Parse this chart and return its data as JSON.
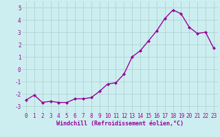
{
  "x": [
    0,
    1,
    2,
    3,
    4,
    5,
    6,
    7,
    8,
    9,
    10,
    11,
    12,
    13,
    14,
    15,
    16,
    17,
    18,
    19,
    20,
    21,
    22,
    23
  ],
  "y": [
    -2.5,
    -2.1,
    -2.7,
    -2.6,
    -2.7,
    -2.7,
    -2.4,
    -2.4,
    -2.3,
    -1.8,
    -1.2,
    -1.1,
    -0.4,
    1.0,
    1.5,
    2.3,
    3.1,
    4.1,
    4.8,
    4.5,
    3.4,
    2.9,
    3.0,
    1.7
  ],
  "line_color": "#990099",
  "marker": "D",
  "marker_size": 2.2,
  "linewidth": 1.0,
  "xlabel": "Windchill (Refroidissement éolien,°C)",
  "xlabel_fontsize": 6.0,
  "xlim": [
    -0.5,
    23.5
  ],
  "ylim": [
    -3.5,
    5.5
  ],
  "yticks": [
    -3,
    -2,
    -1,
    0,
    1,
    2,
    3,
    4,
    5
  ],
  "xticks": [
    0,
    1,
    2,
    3,
    4,
    5,
    6,
    7,
    8,
    9,
    10,
    11,
    12,
    13,
    14,
    15,
    16,
    17,
    18,
    19,
    20,
    21,
    22,
    23
  ],
  "background_color": "#cceef0",
  "grid_color": "#aacccc",
  "tick_color": "#990099",
  "tick_fontsize": 5.5,
  "font_family": "monospace"
}
